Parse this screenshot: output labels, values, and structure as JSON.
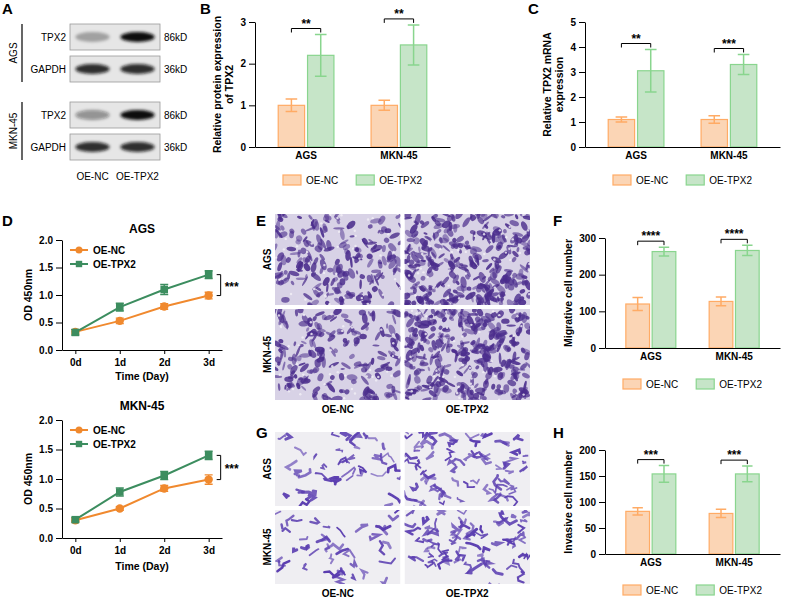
{
  "chart_data": [
    {
      "type": "blot",
      "panel": "A",
      "lanes": [
        "OE-NC",
        "OE-TPX2"
      ],
      "groups": [
        {
          "name": "AGS",
          "rows": [
            {
              "name": "TPX2",
              "size": "86kD",
              "intensities": [
                0.3,
                1.0
              ]
            },
            {
              "name": "GAPDH",
              "size": "36kD",
              "intensities": [
                0.85,
                0.85
              ]
            }
          ]
        },
        {
          "name": "MKN-45",
          "rows": [
            {
              "name": "TPX2",
              "size": "86kD",
              "intensities": [
                0.4,
                1.0
              ]
            },
            {
              "name": "GAPDH",
              "size": "36kD",
              "intensities": [
                0.85,
                0.85
              ]
            }
          ]
        }
      ]
    },
    {
      "type": "bar",
      "panel": "B",
      "y_label": "Relative protein expression of TPX2",
      "categories": [
        "AGS",
        "MKN-45"
      ],
      "series": [
        {
          "name": "OE-NC",
          "color": "#fbd5b5",
          "values": [
            1.0,
            1.0
          ],
          "errors": [
            0.15,
            0.12
          ]
        },
        {
          "name": "OE-TPX2",
          "color": "#c6e5c8",
          "values": [
            2.2,
            2.45
          ],
          "errors": [
            0.5,
            0.48
          ]
        }
      ],
      "ylim": [
        0,
        3
      ],
      "yticks": [
        0,
        1,
        2,
        3
      ],
      "annotations": [
        "**",
        "**"
      ],
      "legend": "bottom"
    },
    {
      "type": "bar",
      "panel": "C",
      "y_label": "Relative TPX2 mRNA expression",
      "categories": [
        "AGS",
        "MKN-45"
      ],
      "series": [
        {
          "name": "OE-NC",
          "color": "#fbd5b5",
          "values": [
            1.1,
            1.1
          ],
          "errors": [
            0.1,
            0.15
          ]
        },
        {
          "name": "OE-TPX2",
          "color": "#c6e5c8",
          "values": [
            3.05,
            3.3
          ],
          "errors": [
            0.85,
            0.4
          ]
        }
      ],
      "ylim": [
        0,
        5
      ],
      "yticks": [
        0,
        1,
        2,
        3,
        4,
        5
      ],
      "annotations": [
        "**",
        "***"
      ],
      "legend": "bottom"
    },
    {
      "type": "line",
      "panel": "D",
      "title": "AGS",
      "x_label": "Time (Day)",
      "y_label": "OD 450nm",
      "categories": [
        "0d",
        "1d",
        "2d",
        "3d"
      ],
      "series": [
        {
          "name": "OE-NC",
          "color": "#f0892e",
          "marker": "circle",
          "values": [
            0.33,
            0.53,
            0.79,
            0.99
          ],
          "errors": [
            0.04,
            0.05,
            0.05,
            0.06
          ]
        },
        {
          "name": "OE-TPX2",
          "color": "#3c8d5f",
          "marker": "square",
          "values": [
            0.32,
            0.78,
            1.1,
            1.37
          ],
          "errors": [
            0.05,
            0.07,
            0.09,
            0.07
          ]
        }
      ],
      "ylim": [
        0,
        2
      ],
      "yticks": [
        {
          "value": 0,
          "label": "0.0"
        },
        0.5,
        {
          "value": 1,
          "label": "1.0"
        },
        1.5,
        {
          "value": 2,
          "label": "2.0"
        }
      ],
      "annotations": [
        "***"
      ],
      "legend": "top-left"
    },
    {
      "type": "line",
      "title": "MKN-45",
      "x_label": "Time (Day)",
      "y_label": "OD 450nm",
      "categories": [
        "0d",
        "1d",
        "2d",
        "3d"
      ],
      "series": [
        {
          "name": "OE-NC",
          "color": "#f0892e",
          "marker": "circle",
          "values": [
            0.3,
            0.5,
            0.84,
            0.99
          ],
          "errors": [
            0.03,
            0.03,
            0.05,
            0.08
          ]
        },
        {
          "name": "OE-TPX2",
          "color": "#3c8d5f",
          "marker": "square",
          "values": [
            0.31,
            0.78,
            1.06,
            1.4
          ],
          "errors": [
            0.04,
            0.07,
            0.07,
            0.07
          ]
        }
      ],
      "ylim": [
        0,
        2
      ],
      "yticks": [
        {
          "value": 0,
          "label": "0.0"
        },
        0.5,
        {
          "value": 1,
          "label": "1.0"
        },
        1.5,
        {
          "value": 2,
          "label": "2.0"
        }
      ],
      "annotations": [
        "***"
      ],
      "legend": "top-left"
    },
    {
      "type": "image",
      "panel": "E",
      "rows": [
        "AGS",
        "MKN-45"
      ],
      "columns": [
        "OE-NC",
        "OE-TPX2"
      ]
    },
    {
      "type": "bar",
      "panel": "F",
      "y_label": "Migrative cell number",
      "categories": [
        "AGS",
        "MKN-45"
      ],
      "series": [
        {
          "name": "OE-NC",
          "color": "#fbd5b5",
          "values": [
            120,
            127
          ],
          "errors": [
            18,
            12
          ]
        },
        {
          "name": "OE-TPX2",
          "color": "#c6e5c8",
          "values": [
            263,
            266
          ],
          "errors": [
            12,
            14
          ]
        }
      ],
      "ylim": [
        0,
        300
      ],
      "yticks": [
        0,
        100,
        200,
        300
      ],
      "annotations": [
        "****",
        "****"
      ],
      "legend": "bottom"
    },
    {
      "type": "image",
      "panel": "G",
      "rows": [
        "AGS",
        "MKN-45"
      ],
      "columns": [
        "OE-NC",
        "OE-TPX2"
      ]
    },
    {
      "type": "bar",
      "panel": "H",
      "y_label": "Invasive cell number",
      "categories": [
        "AGS",
        "MKN-45"
      ],
      "series": [
        {
          "name": "OE-NC",
          "color": "#fbd5b5",
          "values": [
            82,
            78
          ],
          "errors": [
            7,
            8
          ]
        },
        {
          "name": "OE-TPX2",
          "color": "#c6e5c8",
          "values": [
            154,
            154
          ],
          "errors": [
            16,
            15
          ]
        }
      ],
      "ylim": [
        0,
        200
      ],
      "yticks": [
        0,
        50,
        100,
        150,
        200
      ],
      "annotations": [
        "***",
        "***"
      ],
      "legend": "bottom"
    }
  ]
}
